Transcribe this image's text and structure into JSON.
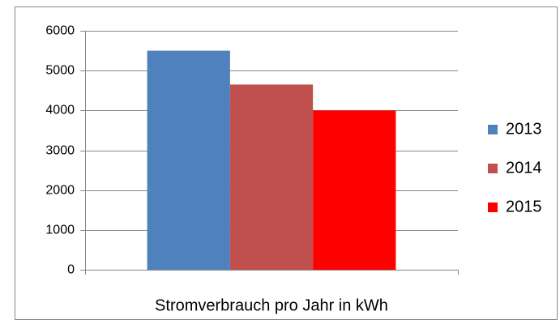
{
  "chart_data": {
    "type": "bar",
    "categories": [
      "Stromverbrauch pro Jahr in kWh"
    ],
    "series": [
      {
        "name": "2013",
        "color": "#4f81bd",
        "values": [
          5500
        ]
      },
      {
        "name": "2014",
        "color": "#c0504d",
        "values": [
          4650
        ]
      },
      {
        "name": "2015",
        "color": "#ff0000",
        "values": [
          4000
        ]
      }
    ],
    "ylim": [
      0,
      6000
    ],
    "yticks": [
      0,
      1000,
      2000,
      3000,
      4000,
      5000,
      6000
    ],
    "grid": true,
    "legend": "right"
  }
}
